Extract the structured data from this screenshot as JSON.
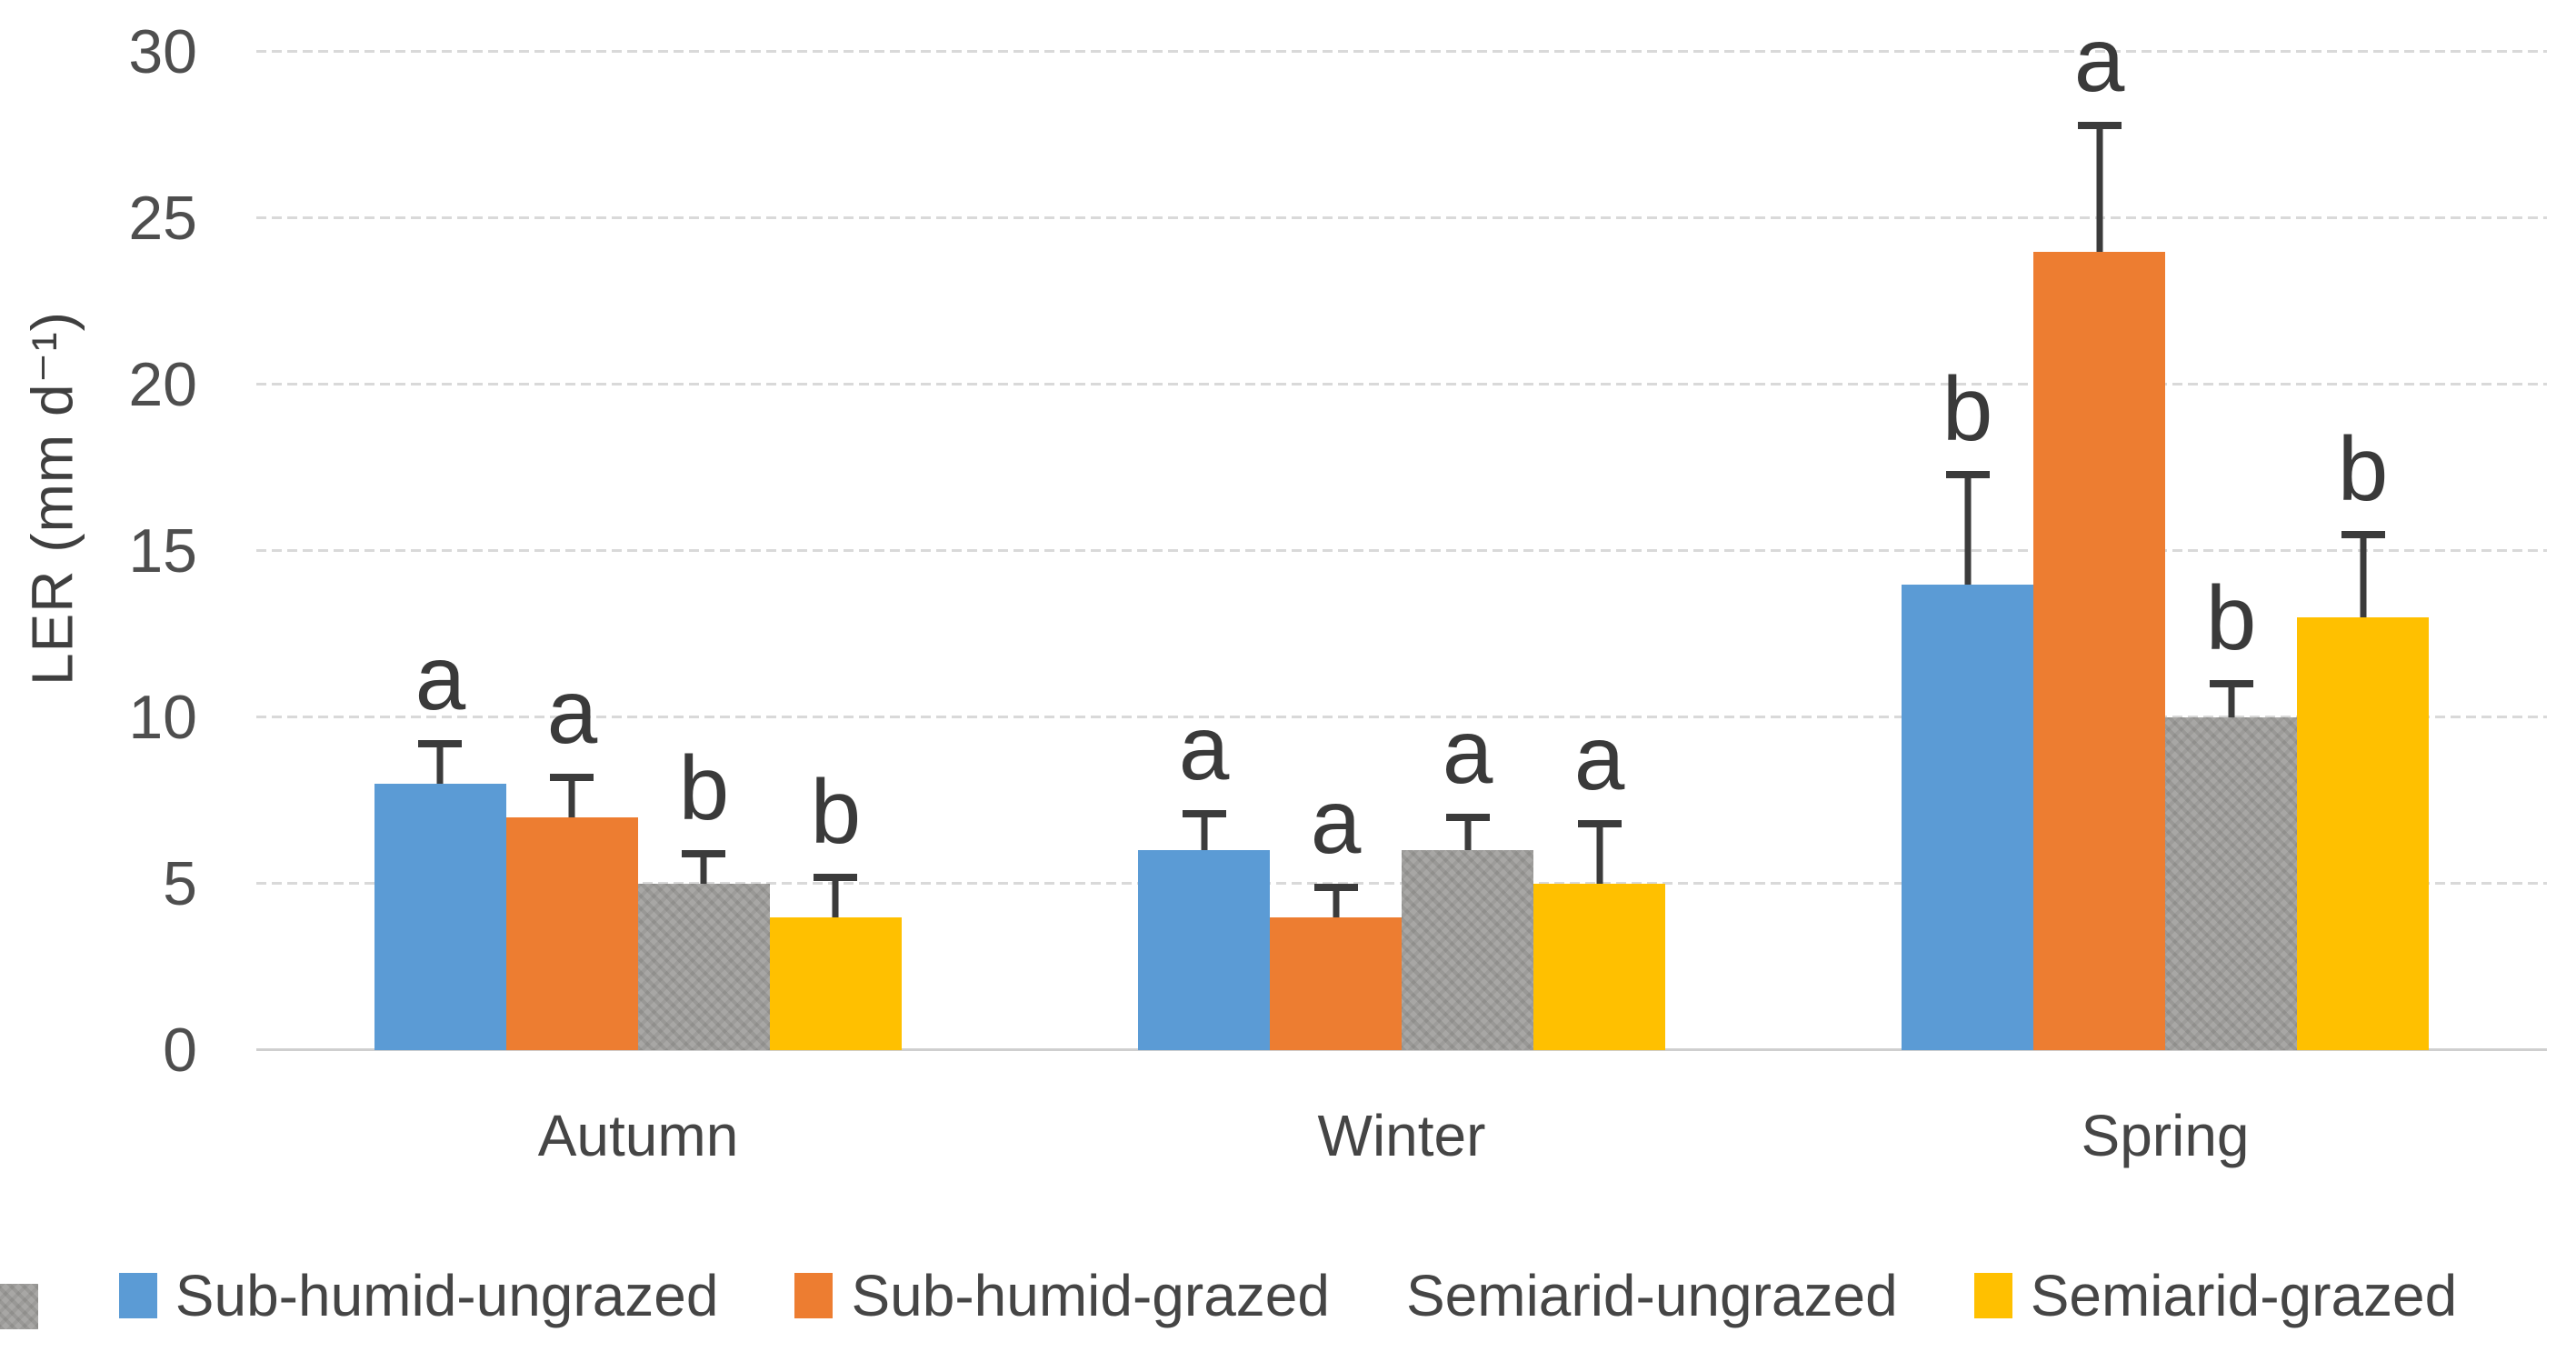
{
  "chart_data": {
    "type": "bar",
    "title": "",
    "ylabel": "LER (mm d⁻¹)",
    "xlabel": "",
    "ylim": [
      0,
      30
    ],
    "ytick_step": 5,
    "yticks": [
      0,
      5,
      10,
      15,
      20,
      25,
      30
    ],
    "grid": true,
    "gridline_color": "#d9d9d9",
    "error_bar_color": "#3b3b3b",
    "legend_position": "bottom",
    "categories": [
      "Autumn",
      "Winter",
      "Spring"
    ],
    "series": [
      {
        "name": "Sub-humid-ungrazed",
        "color": "#5B9BD5",
        "pattern": false,
        "values": [
          8,
          6,
          14
        ],
        "errors": [
          1.2,
          1.1,
          3.3
        ],
        "sig_letters": [
          "a",
          "a",
          "b"
        ]
      },
      {
        "name": "Sub-humid-grazed",
        "color": "#ED7D31",
        "pattern": false,
        "values": [
          7,
          4,
          24
        ],
        "errors": [
          1.2,
          0.9,
          3.8
        ],
        "sig_letters": [
          "a",
          "a",
          "a"
        ]
      },
      {
        "name": "Semiarid-ungrazed",
        "color": "#A8A7A5",
        "pattern": true,
        "values": [
          5,
          6,
          10
        ],
        "errors": [
          0.9,
          1.0,
          1.0
        ],
        "sig_letters": [
          "b",
          "a",
          "b"
        ]
      },
      {
        "name": "Semiarid-grazed",
        "color": "#FFC000",
        "pattern": false,
        "values": [
          4,
          5,
          13
        ],
        "errors": [
          1.2,
          1.8,
          2.5
        ],
        "sig_letters": [
          "b",
          "a",
          "b"
        ]
      }
    ]
  }
}
